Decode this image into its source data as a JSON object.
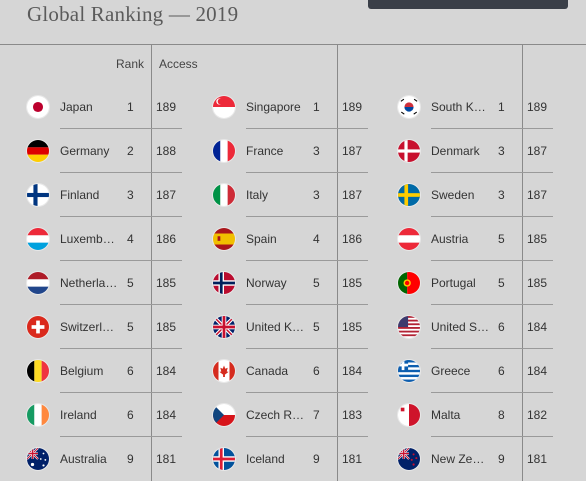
{
  "title": "Global Ranking — 2019",
  "headers": {
    "rank": "Rank",
    "access": "Access"
  },
  "columns": [
    [
      {
        "name": "Japan",
        "rank": "1",
        "access": "189",
        "flag": "japan-flag-icon"
      },
      {
        "name": "Germany",
        "rank": "2",
        "access": "188",
        "flag": "germany-flag-icon"
      },
      {
        "name": "Finland",
        "rank": "3",
        "access": "187",
        "flag": "finland-flag-icon"
      },
      {
        "name": "Luxemb…",
        "rank": "4",
        "access": "186",
        "flag": "luxembourg-flag-icon"
      },
      {
        "name": "Netherla…",
        "rank": "5",
        "access": "185",
        "flag": "netherlands-flag-icon"
      },
      {
        "name": "Switzerl…",
        "rank": "5",
        "access": "185",
        "flag": "switzerland-flag-icon"
      },
      {
        "name": "Belgium",
        "rank": "6",
        "access": "184",
        "flag": "belgium-flag-icon"
      },
      {
        "name": "Ireland",
        "rank": "6",
        "access": "184",
        "flag": "ireland-flag-icon"
      },
      {
        "name": "Australia",
        "rank": "9",
        "access": "181",
        "flag": "australia-flag-icon"
      }
    ],
    [
      {
        "name": "Singapore",
        "rank": "1",
        "access": "189",
        "flag": "singapore-flag-icon"
      },
      {
        "name": "France",
        "rank": "3",
        "access": "187",
        "flag": "france-flag-icon"
      },
      {
        "name": "Italy",
        "rank": "3",
        "access": "187",
        "flag": "italy-flag-icon"
      },
      {
        "name": "Spain",
        "rank": "4",
        "access": "186",
        "flag": "spain-flag-icon"
      },
      {
        "name": "Norway",
        "rank": "5",
        "access": "185",
        "flag": "norway-flag-icon"
      },
      {
        "name": "United K…",
        "rank": "5",
        "access": "185",
        "flag": "uk-flag-icon"
      },
      {
        "name": "Canada",
        "rank": "6",
        "access": "184",
        "flag": "canada-flag-icon"
      },
      {
        "name": "Czech R…",
        "rank": "7",
        "access": "183",
        "flag": "czech-flag-icon"
      },
      {
        "name": "Iceland",
        "rank": "9",
        "access": "181",
        "flag": "iceland-flag-icon"
      }
    ],
    [
      {
        "name": "South K…",
        "rank": "1",
        "access": "189",
        "flag": "south-korea-flag-icon"
      },
      {
        "name": "Denmark",
        "rank": "3",
        "access": "187",
        "flag": "denmark-flag-icon"
      },
      {
        "name": "Sweden",
        "rank": "3",
        "access": "187",
        "flag": "sweden-flag-icon"
      },
      {
        "name": "Austria",
        "rank": "5",
        "access": "185",
        "flag": "austria-flag-icon"
      },
      {
        "name": "Portugal",
        "rank": "5",
        "access": "185",
        "flag": "portugal-flag-icon"
      },
      {
        "name": "United S…",
        "rank": "6",
        "access": "184",
        "flag": "usa-flag-icon"
      },
      {
        "name": "Greece",
        "rank": "6",
        "access": "184",
        "flag": "greece-flag-icon"
      },
      {
        "name": "Malta",
        "rank": "8",
        "access": "182",
        "flag": "malta-flag-icon"
      },
      {
        "name": "New Ze…",
        "rank": "9",
        "access": "181",
        "flag": "new-zealand-flag-icon"
      }
    ]
  ]
}
